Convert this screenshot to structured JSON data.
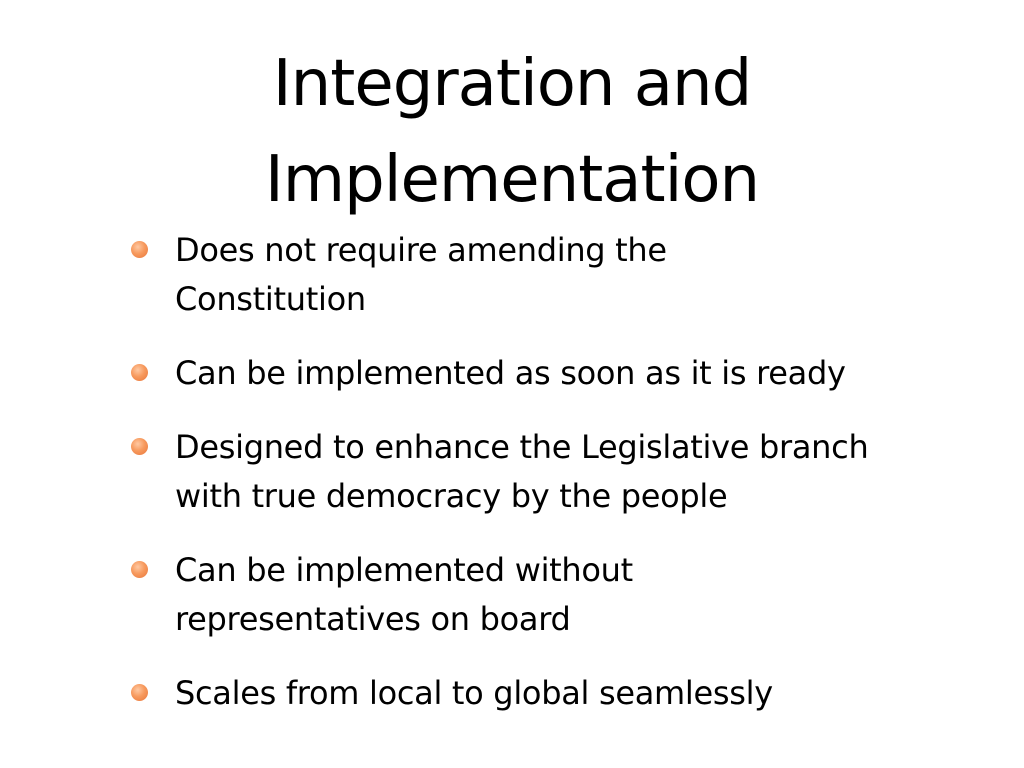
{
  "slide": {
    "title_line1": "Integration and",
    "title_line2": "Implementation",
    "bullet_color": "#f28a4c",
    "bullets": [
      {
        "text": "Does not require amending the Constitution"
      },
      {
        "text": "Can be implemented as soon as it is ready"
      },
      {
        "text": "Designed to enhance the Legislative branch with true democracy by the people"
      },
      {
        "text": "Can be implemented without representatives on board"
      },
      {
        "text": "Scales from local to global seamlessly"
      }
    ]
  }
}
